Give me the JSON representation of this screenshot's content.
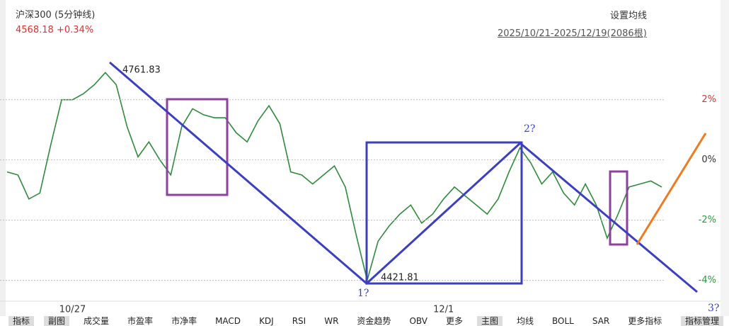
{
  "header": {
    "title": "沪深300 (5分钟线)",
    "price": "4568.18",
    "change": "+0.34%",
    "ma_setting": "设置均线",
    "range": "2025/10/21-2025/12/19(2086根)"
  },
  "chart_data": {
    "type": "line",
    "categories": [
      null,
      null,
      null,
      null,
      null,
      null,
      "10/27",
      null,
      null,
      null,
      null,
      null,
      null,
      null,
      null,
      null,
      null,
      null,
      null,
      null,
      null,
      null,
      null,
      null,
      null,
      null,
      null,
      null,
      null,
      null,
      null,
      null,
      null,
      null,
      null,
      null,
      null,
      null,
      null,
      null,
      "12/1",
      null,
      null,
      null,
      null,
      null,
      null,
      null,
      null,
      null,
      null,
      null,
      null,
      null,
      null,
      null,
      null,
      null,
      null,
      null,
      null
    ],
    "series": [
      {
        "color": "#2f8a3c",
        "values": [
          -0.4,
          -0.5,
          -1.3,
          -1.1,
          0.5,
          2.0,
          2.0,
          2.2,
          2.5,
          2.9,
          2.5,
          1.1,
          0.1,
          0.6,
          0.0,
          -0.5,
          1.1,
          1.7,
          1.5,
          1.4,
          1.4,
          0.9,
          0.6,
          1.3,
          1.8,
          1.2,
          -0.4,
          -0.5,
          -0.8,
          -0.5,
          -0.2,
          -0.9,
          -2.5,
          -4.0,
          -2.7,
          -2.2,
          -1.8,
          -1.5,
          -2.1,
          -1.8,
          -1.3,
          -0.9,
          -1.2,
          -1.5,
          -1.8,
          -1.3,
          -0.4,
          0.4,
          -0.1,
          -0.8,
          -0.4,
          -1.1,
          -1.5,
          -0.8,
          -1.5,
          -2.6,
          -1.8,
          -0.9,
          -0.8,
          -0.7,
          -0.9
        ]
      }
    ],
    "ylim": [
      -4.6,
      3.9
    ],
    "yticks": [
      {
        "value": 2,
        "label": "2%"
      },
      {
        "value": 0,
        "label": "0%"
      },
      {
        "value": -2,
        "label": "-2%"
      },
      {
        "value": -4,
        "label": "-4%"
      }
    ],
    "grid": true,
    "annotations": {
      "high": "4761.83",
      "low": "4421.81",
      "mark1": "1?",
      "mark2": "2?",
      "mark3": "3?"
    }
  },
  "toolbar": [
    "指标",
    "副图",
    "成交量",
    "市盈率",
    "市净率",
    "MACD",
    "KDJ",
    "RSI",
    "WR",
    "资金趋势",
    "OBV",
    "更多",
    "主图",
    "均线",
    "BOLL",
    "SAR",
    "更多指标",
    "指标管理"
  ]
}
